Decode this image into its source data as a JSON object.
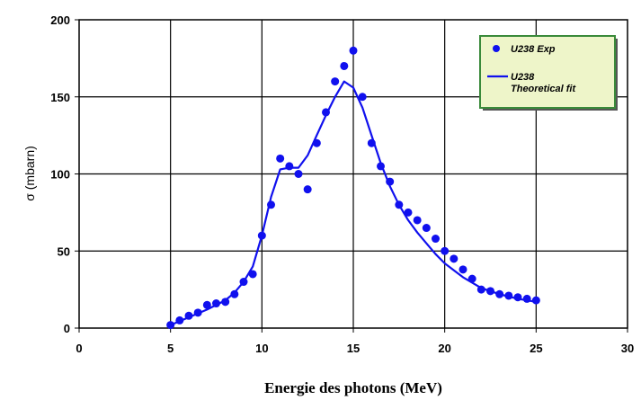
{
  "chart_data": {
    "type": "scatter",
    "xlabel": "Energie des photons (MeV)",
    "ylabel": "σ (mbarn)",
    "xlim": [
      0,
      30
    ],
    "ylim": [
      0,
      200
    ],
    "xticks": [
      0,
      5,
      10,
      15,
      20,
      25,
      30
    ],
    "yticks": [
      0,
      50,
      100,
      150,
      200
    ],
    "grid": true,
    "legend_position": "top-right",
    "series": [
      {
        "name": "U238 Exp",
        "kind": "markers",
        "color": "#1010ee",
        "x": [
          5,
          5.5,
          6,
          6.5,
          7,
          7.5,
          8,
          8.5,
          9,
          9.5,
          10,
          10.5,
          11,
          11.5,
          12,
          12.5,
          13,
          13.5,
          14,
          14.5,
          15,
          15.5,
          16,
          16.5,
          17,
          17.5,
          18,
          18.5,
          19,
          19.5,
          20,
          20.5,
          21,
          21.5,
          22,
          22.5,
          23,
          23.5,
          24,
          24.5,
          25
        ],
        "y": [
          2,
          5,
          8,
          10,
          15,
          16,
          17,
          22,
          30,
          35,
          60,
          80,
          110,
          105,
          100,
          90,
          120,
          140,
          160,
          170,
          180,
          150,
          120,
          105,
          95,
          80,
          75,
          70,
          65,
          58,
          50,
          45,
          38,
          32,
          25,
          24,
          22,
          21,
          20,
          19,
          18
        ]
      },
      {
        "name": "U238 Theoretical fit",
        "legend_lines": [
          "U238",
          "Theoretical fit"
        ],
        "kind": "line",
        "color": "#1010ee",
        "x": [
          5,
          6,
          7,
          8,
          8.5,
          9,
          9.5,
          10,
          10.5,
          11,
          11.5,
          12,
          12.5,
          13,
          13.5,
          14,
          14.5,
          15,
          15.5,
          16,
          16.5,
          17,
          17.5,
          18,
          18.5,
          19,
          19.5,
          20,
          21,
          22,
          23,
          24,
          25
        ],
        "y": [
          2,
          7,
          12,
          18,
          23,
          30,
          40,
          60,
          85,
          103,
          104,
          104,
          112,
          125,
          138,
          150,
          160,
          156,
          143,
          125,
          107,
          92,
          80,
          70,
          62,
          55,
          48,
          42,
          33,
          26,
          22,
          19,
          17
        ]
      }
    ]
  }
}
